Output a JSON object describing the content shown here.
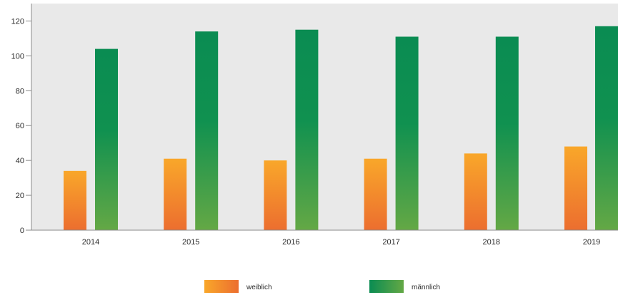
{
  "chart_data": {
    "type": "bar",
    "title": "",
    "xlabel": "",
    "ylabel": "",
    "categories": [
      "2014",
      "2015",
      "2016",
      "2017",
      "2018",
      "2019"
    ],
    "series": [
      {
        "name": "weiblich",
        "values": [
          34,
          41,
          40,
          41,
          44,
          48
        ],
        "color_top": "#f9a72a",
        "color_bottom": "#ec6e2f"
      },
      {
        "name": "männlich",
        "values": [
          104,
          114,
          115,
          111,
          111,
          117
        ],
        "color_top": "#0a8c52",
        "color_bottom": "#64a845"
      }
    ],
    "ylim": [
      0,
      130
    ],
    "yticks": [
      0,
      20,
      40,
      60,
      80,
      100,
      120
    ],
    "grid": false,
    "plot_background": "#e9e9e9",
    "legend_position": "bottom-center"
  }
}
